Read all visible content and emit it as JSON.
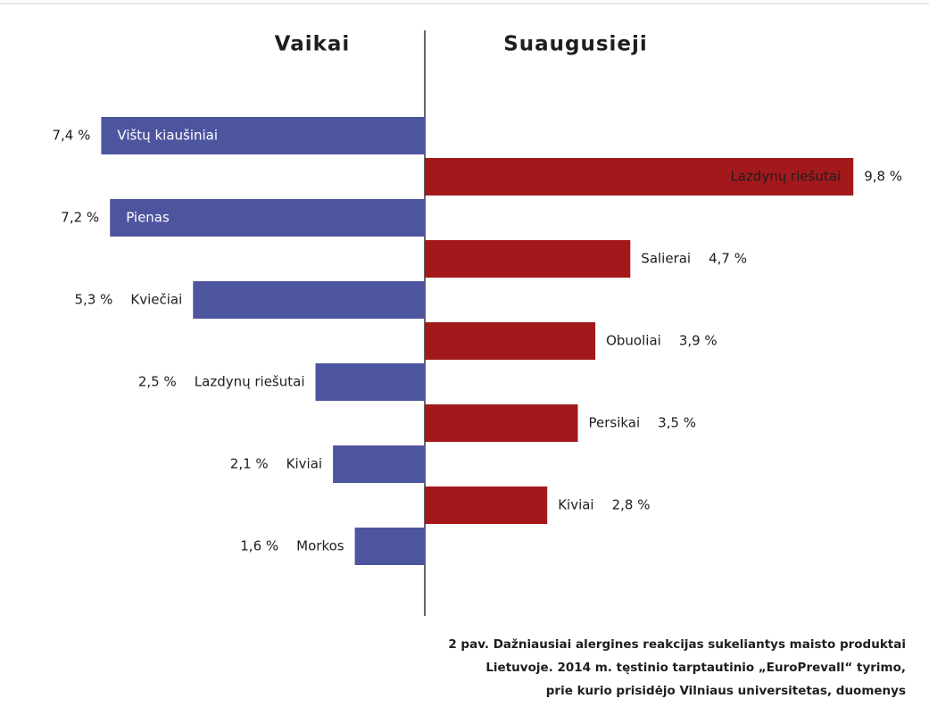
{
  "chart_data": [
    {
      "type": "bar",
      "title": "Vaikai",
      "color": "#4d559f",
      "categories": [
        "Vištų kiaušiniai",
        "Pienas",
        "Kviečiai",
        "Lazdynų riešutai",
        "Kiviai",
        "Morkos"
      ],
      "values": [
        7.4,
        7.2,
        5.3,
        2.5,
        2.1,
        1.6
      ],
      "value_labels": [
        "7,4 %",
        "7,2 %",
        "5,3 %",
        "2,5 %",
        "2,1 %",
        "1,6 %"
      ]
    },
    {
      "type": "bar",
      "title": "Suaugusieji",
      "color": "#a3191b",
      "categories": [
        "Lazdynų riešutai",
        "Salierai",
        "Obuoliai",
        "Persikai",
        "Kiviai"
      ],
      "values": [
        9.8,
        4.7,
        3.9,
        3.5,
        2.8
      ],
      "value_labels": [
        "9,8 %",
        "4,7 %",
        "3,9 %",
        "3,5 %",
        "2,8 %"
      ]
    }
  ],
  "caption": [
    "2 pav. Dažniausiai alergines reakcijas sukeliantys maisto produktai",
    "Lietuvoje. 2014 m. tęstinio tarptautinio „EuroPrevall“ tyrimo,",
    "prie kurio prisidėjo Vilniaus universitetas, duomenys"
  ]
}
